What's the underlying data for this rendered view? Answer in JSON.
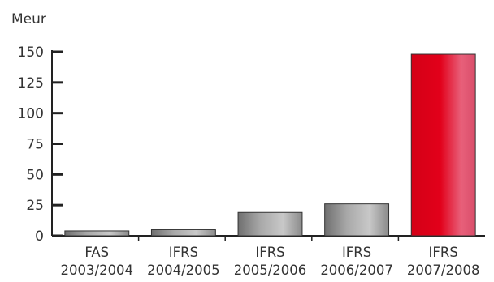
{
  "chart_data": {
    "type": "bar",
    "unit_label": "Meur",
    "categories": [
      [
        "FAS",
        "2003/2004"
      ],
      [
        "IFRS",
        "2004/2005"
      ],
      [
        "IFRS",
        "2005/2006"
      ],
      [
        "IFRS",
        "2006/2007"
      ],
      [
        "IFRS",
        "2007/2008"
      ]
    ],
    "values": [
      4,
      5,
      19,
      26,
      148
    ],
    "ylim": [
      0,
      150
    ],
    "yticks": [
      0,
      25,
      50,
      75,
      100,
      125,
      150
    ],
    "ytick_labels": [
      "0",
      "25",
      "50",
      "75",
      "100",
      "125",
      "150"
    ],
    "colors": [
      "#9a9a9a",
      "#9a9a9a",
      "#9a9a9a",
      "#9a9a9a",
      "#e2001a"
    ],
    "grid": false
  }
}
